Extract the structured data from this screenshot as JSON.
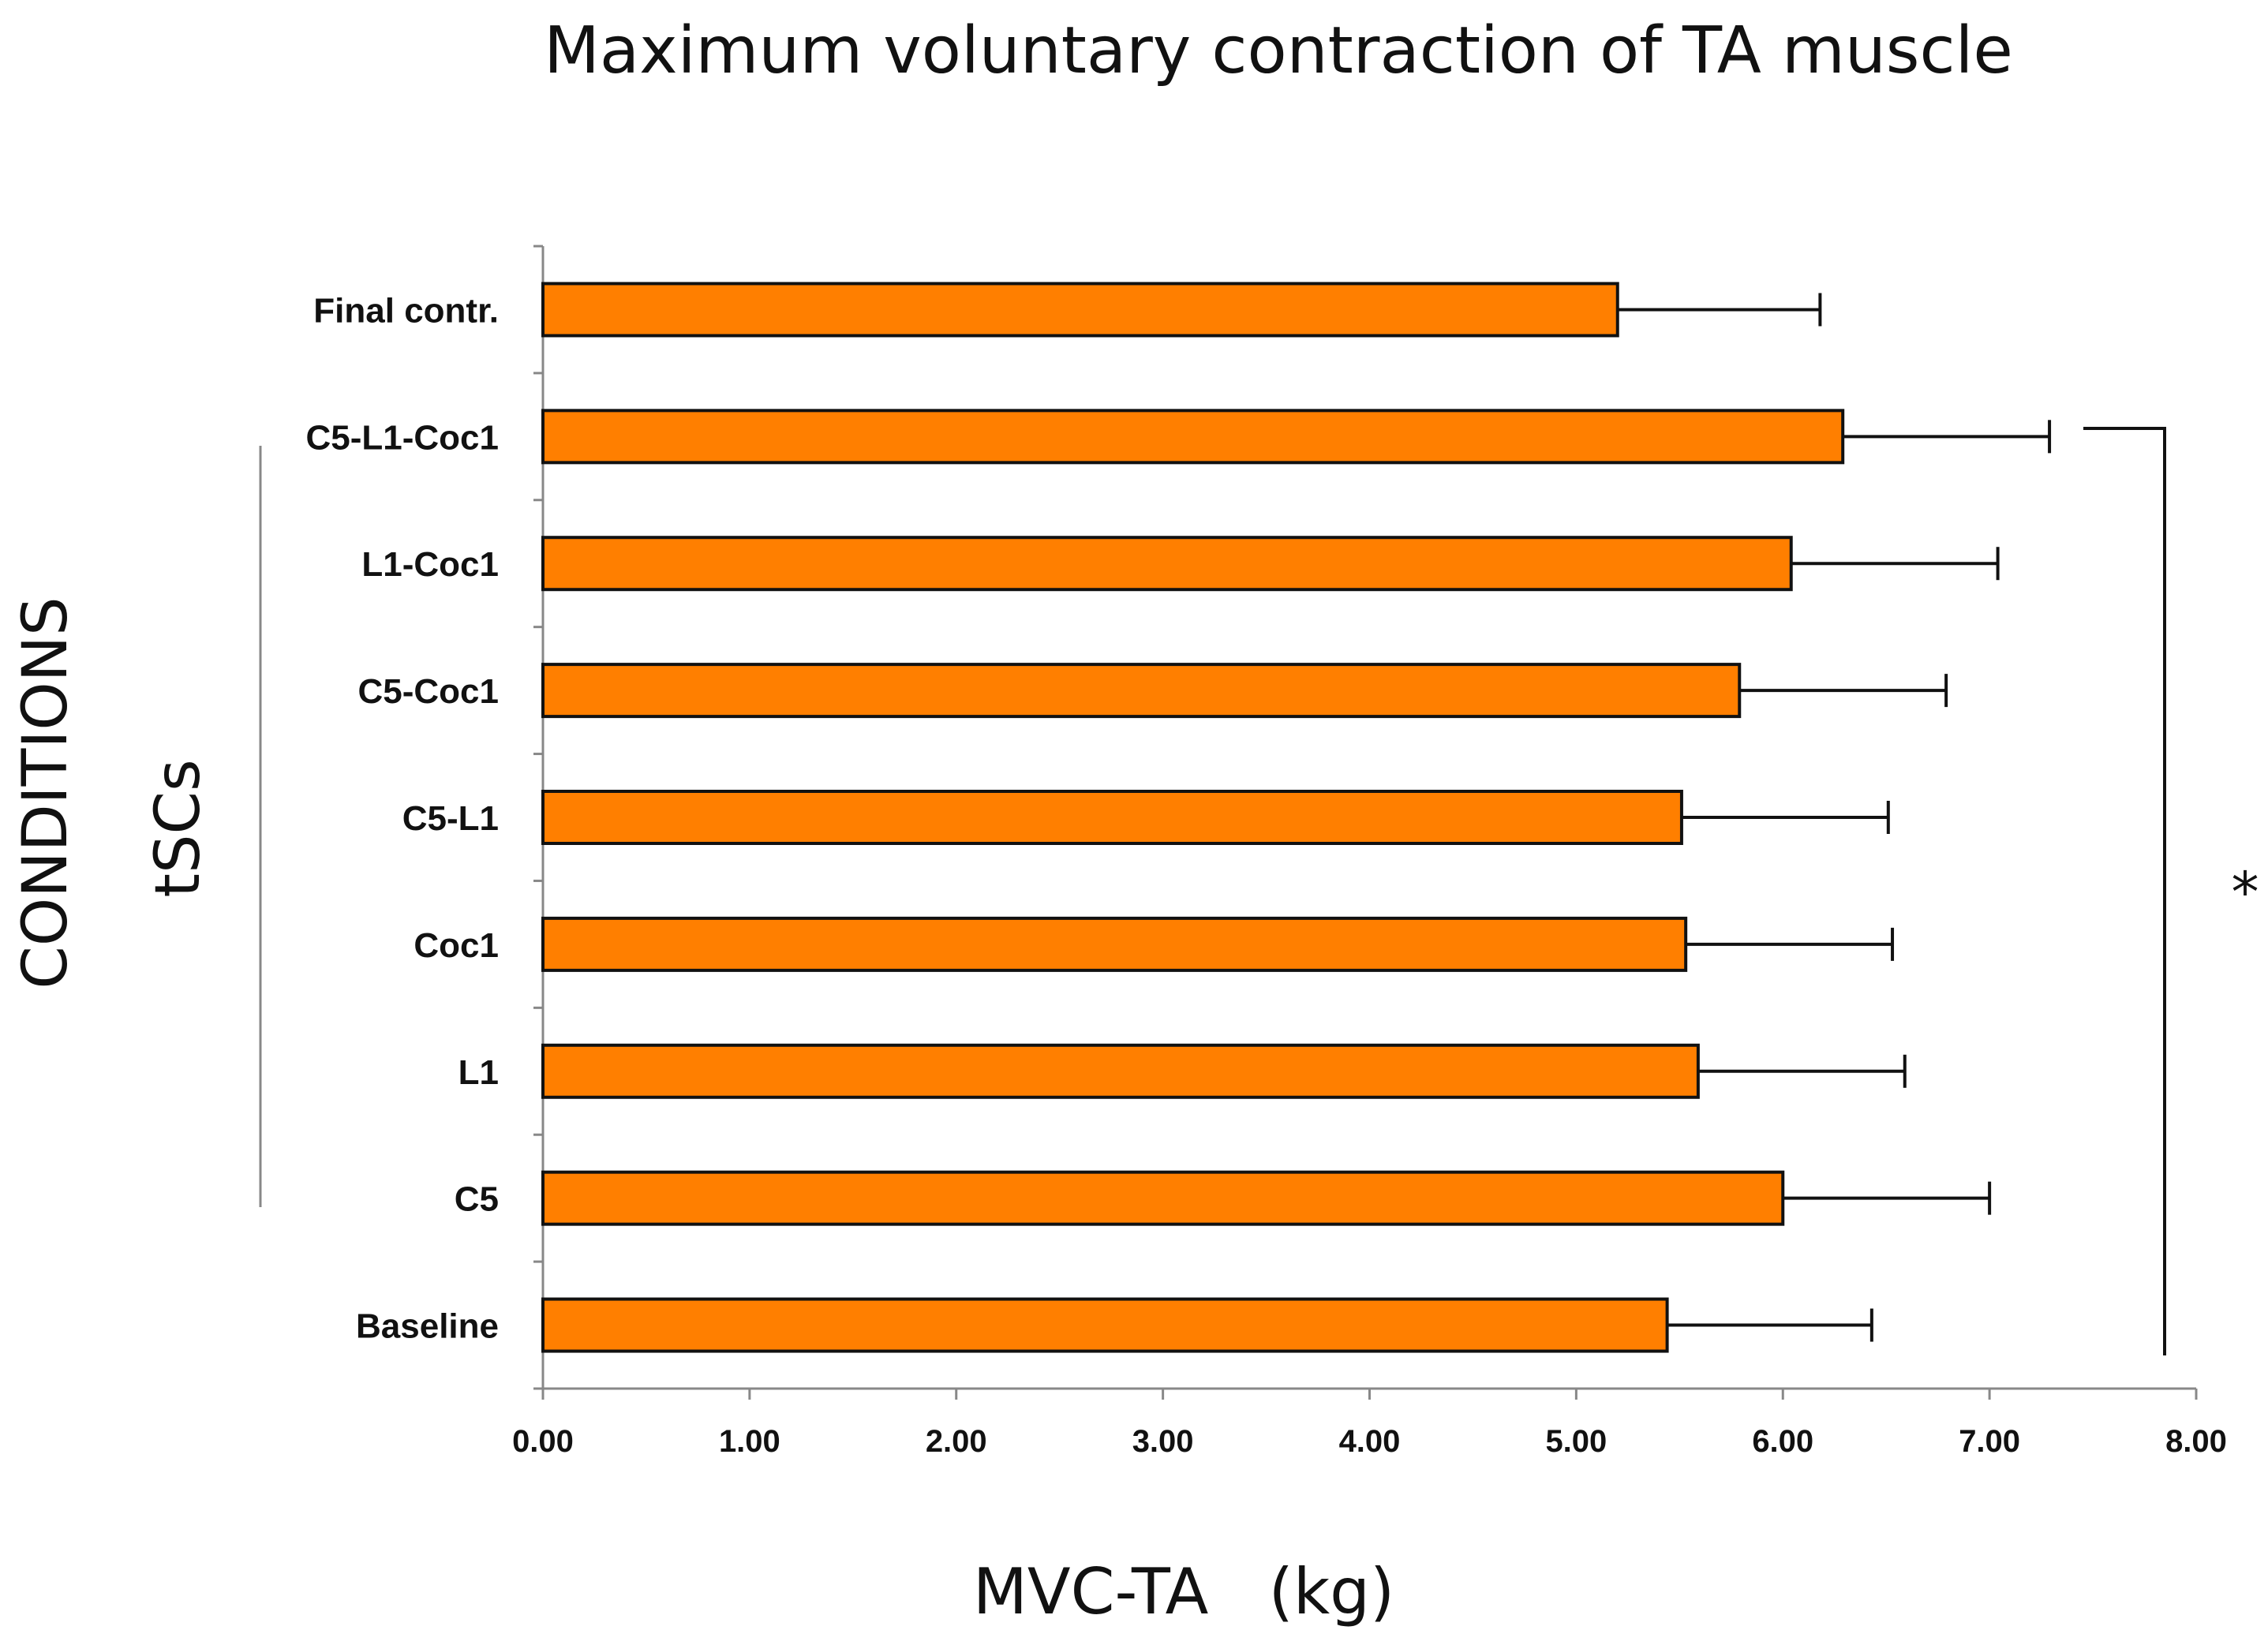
{
  "chart_data": {
    "type": "bar",
    "orientation": "horizontal",
    "title": "Maximum voluntary contraction of TA muscle",
    "xlabel": "MVC-TA   (kg)",
    "ylabel": "CONDITIONS",
    "group_label": "tSCs",
    "significance_marker": "*",
    "categories": [
      "Final contr.",
      "C5-L1-Coc1",
      "L1-Coc1",
      "C5-Coc1",
      "C5-L1",
      "Coc1",
      "L1",
      "C5",
      "Baseline"
    ],
    "values": [
      5.2,
      6.29,
      6.04,
      5.79,
      5.51,
      5.53,
      5.59,
      6.0,
      5.44
    ],
    "errors": [
      0.98,
      1.0,
      1.0,
      1.0,
      1.0,
      1.0,
      1.0,
      1.0,
      0.99
    ],
    "xlim": [
      0,
      8
    ],
    "xticks": [
      0,
      1,
      2,
      3,
      4,
      5,
      6,
      7,
      8
    ],
    "xtick_labels": [
      "0.00",
      "1.00",
      "2.00",
      "3.00",
      "4.00",
      "5.00",
      "6.00",
      "7.00",
      "8.00"
    ],
    "grid": false,
    "bar_color": "#ff7f00",
    "edge_color": "#111111"
  }
}
